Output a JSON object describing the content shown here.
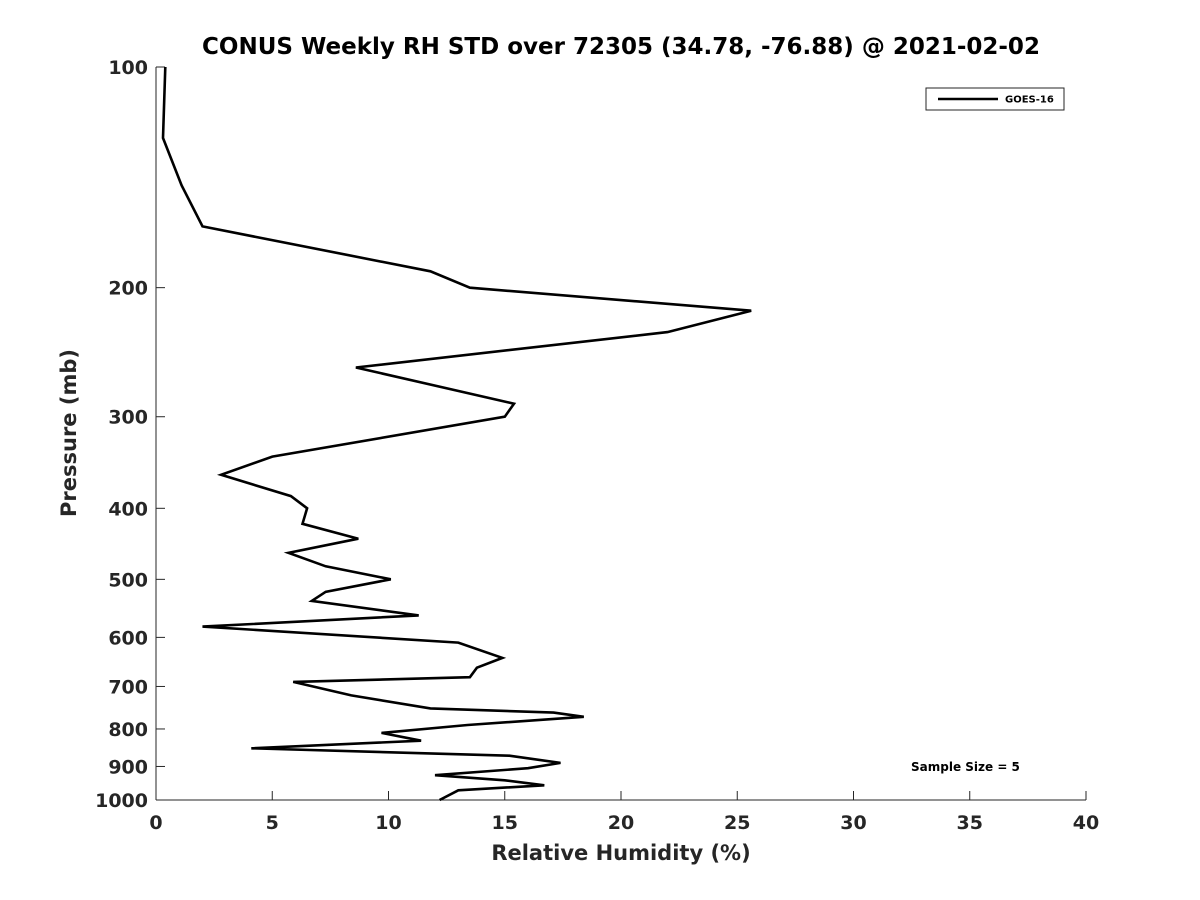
{
  "chart_data": {
    "type": "line",
    "title": "CONUS Weekly RH STD over 72305 (34.78, -76.88) @ 2021-02-02",
    "xlabel": "Relative Humidity (%)",
    "ylabel": "Pressure (mb)",
    "xlim": [
      0,
      40
    ],
    "ylim": [
      100,
      1000
    ],
    "y_scale": "log",
    "y_reversed": true,
    "xticks": [
      0,
      5,
      10,
      15,
      20,
      25,
      30,
      35,
      40
    ],
    "yticks": [
      100,
      200,
      300,
      400,
      500,
      600,
      700,
      800,
      900,
      1000
    ],
    "grid": false,
    "legend_position": "top-right",
    "annotation": "Sample Size = 5",
    "colors": {
      "line": "#000000",
      "axes": "#262626"
    },
    "series": [
      {
        "name": "GOES-16",
        "points": [
          [
            0.4,
            100
          ],
          [
            0.3,
            125
          ],
          [
            1.1,
            145
          ],
          [
            2.0,
            165
          ],
          [
            11.8,
            190
          ],
          [
            13.5,
            200
          ],
          [
            25.6,
            215
          ],
          [
            22.0,
            230
          ],
          [
            8.6,
            257
          ],
          [
            15.4,
            288
          ],
          [
            15.0,
            300
          ],
          [
            5.0,
            340
          ],
          [
            2.8,
            360
          ],
          [
            5.8,
            385
          ],
          [
            6.5,
            400
          ],
          [
            6.3,
            420
          ],
          [
            8.7,
            440
          ],
          [
            5.7,
            460
          ],
          [
            7.3,
            480
          ],
          [
            10.1,
            500
          ],
          [
            7.3,
            520
          ],
          [
            6.7,
            535
          ],
          [
            11.3,
            560
          ],
          [
            2.0,
            580
          ],
          [
            13.0,
            610
          ],
          [
            14.9,
            640
          ],
          [
            13.8,
            660
          ],
          [
            13.5,
            680
          ],
          [
            5.9,
            690
          ],
          [
            8.4,
            720
          ],
          [
            11.8,
            750
          ],
          [
            17.1,
            760
          ],
          [
            18.4,
            770
          ],
          [
            13.4,
            790
          ],
          [
            9.7,
            810
          ],
          [
            11.4,
            830
          ],
          [
            4.1,
            850
          ],
          [
            15.2,
            870
          ],
          [
            17.4,
            890
          ],
          [
            16.0,
            905
          ],
          [
            12.0,
            925
          ],
          [
            15.0,
            940
          ],
          [
            16.7,
            955
          ],
          [
            13.0,
            970
          ],
          [
            12.2,
            1000
          ]
        ]
      }
    ]
  }
}
